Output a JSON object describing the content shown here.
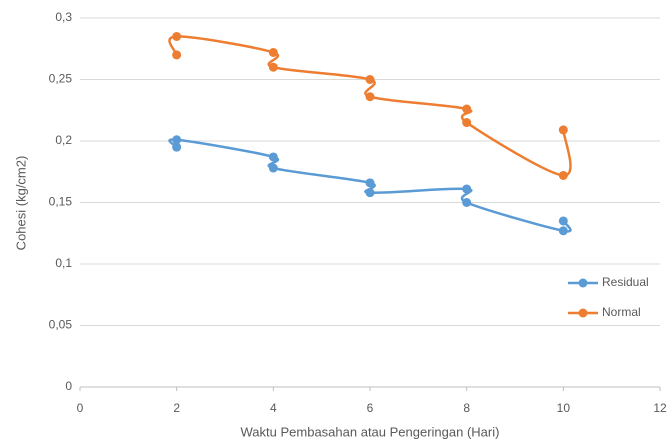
{
  "chart_data": {
    "type": "scatter-smooth",
    "x_label": "Waktu Pembasahan atau Pengeringan (Hari)",
    "y_label": "Cohesi (kg/cm2)",
    "xlim": [
      0,
      12
    ],
    "xticks": [
      0,
      2,
      4,
      6,
      8,
      10,
      12
    ],
    "ylim": [
      0,
      0.3
    ],
    "yticks": [
      0,
      {
        "value": 0.05,
        "label": "0,05"
      },
      {
        "value": 0.1,
        "label": "0,1"
      },
      {
        "value": 0.15,
        "label": "0,15"
      },
      {
        "value": 0.2,
        "label": "0,2"
      },
      {
        "value": 0.25,
        "label": "0,25"
      },
      {
        "value": 0.3,
        "label": "0,3"
      }
    ],
    "grid": true,
    "legend": "right",
    "series": [
      {
        "name": "Residual",
        "color": "#5b9bd5",
        "x": [
          2,
          2,
          4,
          4,
          6,
          6,
          8,
          8,
          10,
          10
        ],
        "values": [
          0.195,
          0.201,
          0.187,
          0.178,
          0.166,
          0.158,
          0.161,
          0.15,
          0.127,
          0.135
        ]
      },
      {
        "name": "Normal",
        "color": "#ed7d31",
        "x": [
          2,
          2,
          4,
          4,
          6,
          6,
          8,
          8,
          10,
          10
        ],
        "values": [
          0.27,
          0.285,
          0.272,
          0.26,
          0.25,
          0.236,
          0.226,
          0.215,
          0.172,
          0.209
        ]
      }
    ]
  }
}
